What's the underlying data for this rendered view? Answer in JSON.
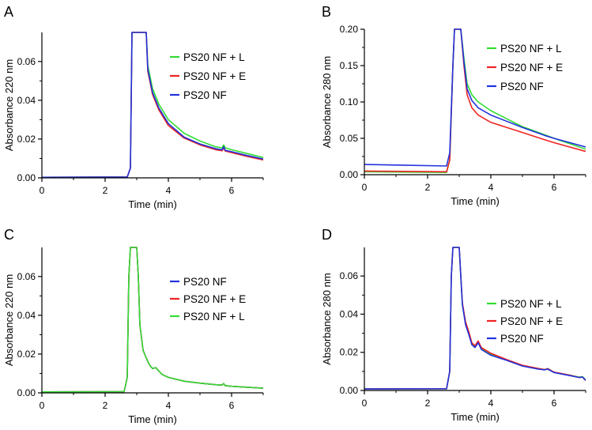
{
  "chart_data": [
    {
      "panel_label": "A",
      "type": "line",
      "xlabel": "Time (min)",
      "ylabel": "Absorbance 220 nm",
      "xlim": [
        0,
        7
      ],
      "ylim": [
        0,
        0.075
      ],
      "xticks": [
        0,
        2,
        4,
        6
      ],
      "xtick_labels": [
        "0",
        "2",
        "4",
        "6"
      ],
      "yticks": [
        0.0,
        0.02,
        0.04,
        0.06
      ],
      "ytick_labels": [
        "0.00",
        "0.02",
        "0.04",
        "0.06"
      ],
      "legend_position": "top-right",
      "series": [
        {
          "name": "PS20 NF + L",
          "color": "#33dd33",
          "x": [
            0,
            2.7,
            2.8,
            2.85,
            3.0,
            3.3,
            3.35,
            3.5,
            3.7,
            4.0,
            4.5,
            5.0,
            5.5,
            5.7,
            5.75,
            5.8,
            6.0,
            6.5,
            7.0
          ],
          "y": [
            0.0003,
            0.0004,
            0.005,
            0.075,
            0.075,
            0.075,
            0.058,
            0.046,
            0.038,
            0.03,
            0.023,
            0.019,
            0.016,
            0.0155,
            0.017,
            0.0155,
            0.0145,
            0.0125,
            0.0105
          ]
        },
        {
          "name": "PS20 NF + E",
          "color": "#ee2222",
          "x": [
            0,
            2.7,
            2.8,
            2.85,
            3.0,
            3.3,
            3.35,
            3.5,
            3.7,
            4.0,
            4.5,
            5.0,
            5.5,
            5.7,
            5.75,
            5.8,
            6.0,
            6.5,
            7.0
          ],
          "y": [
            0.0003,
            0.0004,
            0.005,
            0.075,
            0.075,
            0.075,
            0.055,
            0.043,
            0.035,
            0.027,
            0.0205,
            0.017,
            0.0145,
            0.014,
            0.0155,
            0.0138,
            0.013,
            0.011,
            0.0092
          ]
        },
        {
          "name": "PS20 NF",
          "color": "#2233dd",
          "x": [
            0,
            2.7,
            2.8,
            2.85,
            3.0,
            3.3,
            3.35,
            3.5,
            3.7,
            4.0,
            4.5,
            5.0,
            5.5,
            5.7,
            5.75,
            5.8,
            6.0,
            6.5,
            7.0
          ],
          "y": [
            0.0003,
            0.0004,
            0.005,
            0.075,
            0.075,
            0.075,
            0.056,
            0.044,
            0.036,
            0.028,
            0.021,
            0.0175,
            0.015,
            0.0145,
            0.016,
            0.0142,
            0.0135,
            0.0115,
            0.0097
          ]
        }
      ]
    },
    {
      "panel_label": "B",
      "type": "line",
      "xlabel": "Time (min)",
      "ylabel": "Absorbance 280 nm",
      "xlim": [
        0,
        7
      ],
      "ylim": [
        0,
        0.2
      ],
      "xticks": [
        0,
        2,
        4,
        6
      ],
      "xtick_labels": [
        "0",
        "2",
        "4",
        "6"
      ],
      "yticks": [
        0.0,
        0.05,
        0.1,
        0.15,
        0.2
      ],
      "ytick_labels": [
        "0.00",
        "0.05",
        "0.10",
        "0.15",
        "0.20"
      ],
      "legend_position": "top-right",
      "series": [
        {
          "name": "PS20 NF + L",
          "color": "#33dd33",
          "x": [
            0,
            2.6,
            2.7,
            2.8,
            2.85,
            2.95,
            3.05,
            3.15,
            3.25,
            3.4,
            3.6,
            4.0,
            5.0,
            5.7,
            6.0,
            7.0
          ],
          "y": [
            0.004,
            0.003,
            0.02,
            0.15,
            0.2,
            0.2,
            0.2,
            0.16,
            0.125,
            0.11,
            0.1,
            0.088,
            0.066,
            0.055,
            0.05,
            0.035
          ]
        },
        {
          "name": "PS20 NF + E",
          "color": "#ee2222",
          "x": [
            0,
            2.6,
            2.7,
            2.8,
            2.85,
            2.95,
            3.05,
            3.15,
            3.25,
            3.4,
            3.6,
            4.0,
            5.0,
            5.7,
            6.0,
            7.0
          ],
          "y": [
            0.005,
            0.004,
            0.02,
            0.15,
            0.2,
            0.2,
            0.2,
            0.15,
            0.11,
            0.092,
            0.082,
            0.072,
            0.058,
            0.048,
            0.044,
            0.032
          ]
        },
        {
          "name": "PS20 NF",
          "color": "#2233dd",
          "x": [
            0,
            2.6,
            2.7,
            2.8,
            2.85,
            2.95,
            3.05,
            3.15,
            3.25,
            3.4,
            3.6,
            4.0,
            5.0,
            5.7,
            6.0,
            7.0
          ],
          "y": [
            0.014,
            0.012,
            0.03,
            0.15,
            0.2,
            0.2,
            0.2,
            0.155,
            0.118,
            0.102,
            0.092,
            0.082,
            0.065,
            0.054,
            0.05,
            0.038
          ]
        }
      ]
    },
    {
      "panel_label": "C",
      "type": "line",
      "xlabel": "Time (min)",
      "ylabel": "Absorbance 220 nm",
      "xlim": [
        0,
        7
      ],
      "ylim": [
        0,
        0.075
      ],
      "xticks": [
        0,
        2,
        4,
        6
      ],
      "xtick_labels": [
        "0",
        "2",
        "4",
        "6"
      ],
      "yticks": [
        0.0,
        0.02,
        0.04,
        0.06
      ],
      "ytick_labels": [
        "0.00",
        "0.02",
        "0.04",
        "0.06"
      ],
      "legend_position": "top-right",
      "series": [
        {
          "name": "PS20 NF",
          "color": "#2233dd",
          "x": [
            0,
            2.6,
            2.7,
            2.75,
            2.8,
            3.0,
            3.05,
            3.1,
            3.2,
            3.3,
            3.4,
            3.5,
            3.6,
            3.8,
            4.0,
            4.5,
            5.0,
            5.5,
            5.7,
            5.75,
            5.8,
            6.0,
            6.5,
            7.0
          ],
          "y": [
            0.0005,
            0.0006,
            0.008,
            0.06,
            0.075,
            0.075,
            0.06,
            0.035,
            0.022,
            0.018,
            0.0145,
            0.0125,
            0.013,
            0.0095,
            0.008,
            0.006,
            0.005,
            0.0042,
            0.004,
            0.0048,
            0.0037,
            0.0034,
            0.0029,
            0.0024
          ]
        },
        {
          "name": "PS20 NF + E",
          "color": "#ee2222",
          "x": [
            0,
            2.6,
            2.7,
            2.75,
            2.8,
            3.0,
            3.05,
            3.1,
            3.2,
            3.3,
            3.4,
            3.5,
            3.6,
            3.8,
            4.0,
            4.5,
            5.0,
            5.5,
            5.7,
            5.75,
            5.8,
            6.0,
            6.5,
            7.0
          ],
          "y": [
            0.0005,
            0.0006,
            0.008,
            0.06,
            0.075,
            0.075,
            0.06,
            0.035,
            0.022,
            0.018,
            0.0145,
            0.0125,
            0.013,
            0.0095,
            0.008,
            0.006,
            0.005,
            0.0042,
            0.004,
            0.0048,
            0.0037,
            0.0034,
            0.0029,
            0.0024
          ]
        },
        {
          "name": "PS20 NF + L",
          "color": "#33dd33",
          "x": [
            0,
            2.6,
            2.7,
            2.75,
            2.8,
            3.0,
            3.05,
            3.1,
            3.2,
            3.3,
            3.4,
            3.5,
            3.6,
            3.8,
            4.0,
            4.5,
            5.0,
            5.5,
            5.7,
            5.75,
            5.8,
            6.0,
            6.5,
            7.0
          ],
          "y": [
            0.0005,
            0.0006,
            0.008,
            0.06,
            0.075,
            0.075,
            0.06,
            0.035,
            0.022,
            0.018,
            0.0145,
            0.0125,
            0.013,
            0.0095,
            0.008,
            0.006,
            0.005,
            0.0042,
            0.004,
            0.0048,
            0.0037,
            0.0034,
            0.0029,
            0.0024
          ]
        }
      ]
    },
    {
      "panel_label": "D",
      "type": "line",
      "xlabel": "Time (min)",
      "ylabel": "Absorbance 280 nm",
      "xlim": [
        0,
        7
      ],
      "ylim": [
        0,
        0.075
      ],
      "xticks": [
        0,
        2,
        4,
        6
      ],
      "xtick_labels": [
        "0",
        "2",
        "4",
        "6"
      ],
      "yticks": [
        0.0,
        0.02,
        0.04,
        0.06
      ],
      "ytick_labels": [
        "0.00",
        "0.02",
        "0.04",
        "0.06"
      ],
      "legend_position": "top-right",
      "series": [
        {
          "name": "PS20 NF + L",
          "color": "#33dd33",
          "x": [
            0,
            2.6,
            2.7,
            2.75,
            2.8,
            3.0,
            3.05,
            3.1,
            3.2,
            3.3,
            3.4,
            3.5,
            3.6,
            3.7,
            4.0,
            4.5,
            5.0,
            5.5,
            5.7,
            5.8,
            6.0,
            6.5,
            6.8,
            6.9,
            7.0
          ],
          "y": [
            0.0008,
            0.0009,
            0.01,
            0.06,
            0.075,
            0.075,
            0.06,
            0.045,
            0.035,
            0.03,
            0.0245,
            0.023,
            0.0255,
            0.022,
            0.019,
            0.016,
            0.013,
            0.0115,
            0.011,
            0.0115,
            0.0095,
            0.008,
            0.007,
            0.0072,
            0.0055
          ]
        },
        {
          "name": "PS20 NF + E",
          "color": "#ee2222",
          "x": [
            0,
            2.6,
            2.7,
            2.75,
            2.8,
            3.0,
            3.05,
            3.1,
            3.2,
            3.3,
            3.4,
            3.5,
            3.6,
            3.7,
            4.0,
            4.5,
            5.0,
            5.5,
            5.7,
            5.8,
            6.0,
            6.5,
            6.8,
            6.9,
            7.0
          ],
          "y": [
            0.0008,
            0.0009,
            0.01,
            0.06,
            0.075,
            0.075,
            0.06,
            0.046,
            0.036,
            0.031,
            0.025,
            0.0235,
            0.026,
            0.0225,
            0.0195,
            0.0162,
            0.0132,
            0.0115,
            0.011,
            0.0114,
            0.0096,
            0.008,
            0.0068,
            0.007,
            0.0052
          ]
        },
        {
          "name": "PS20 NF",
          "color": "#2233dd",
          "x": [
            0,
            2.6,
            2.7,
            2.75,
            2.8,
            3.0,
            3.05,
            3.1,
            3.2,
            3.3,
            3.4,
            3.5,
            3.6,
            3.7,
            4.0,
            4.5,
            5.0,
            5.5,
            5.7,
            5.8,
            6.0,
            6.5,
            6.8,
            6.9,
            7.0
          ],
          "y": [
            0.0008,
            0.0009,
            0.01,
            0.06,
            0.075,
            0.075,
            0.06,
            0.045,
            0.0345,
            0.0295,
            0.024,
            0.0225,
            0.025,
            0.0215,
            0.0185,
            0.0158,
            0.0128,
            0.0112,
            0.0108,
            0.0112,
            0.0094,
            0.0078,
            0.0068,
            0.007,
            0.0053
          ]
        }
      ]
    }
  ]
}
